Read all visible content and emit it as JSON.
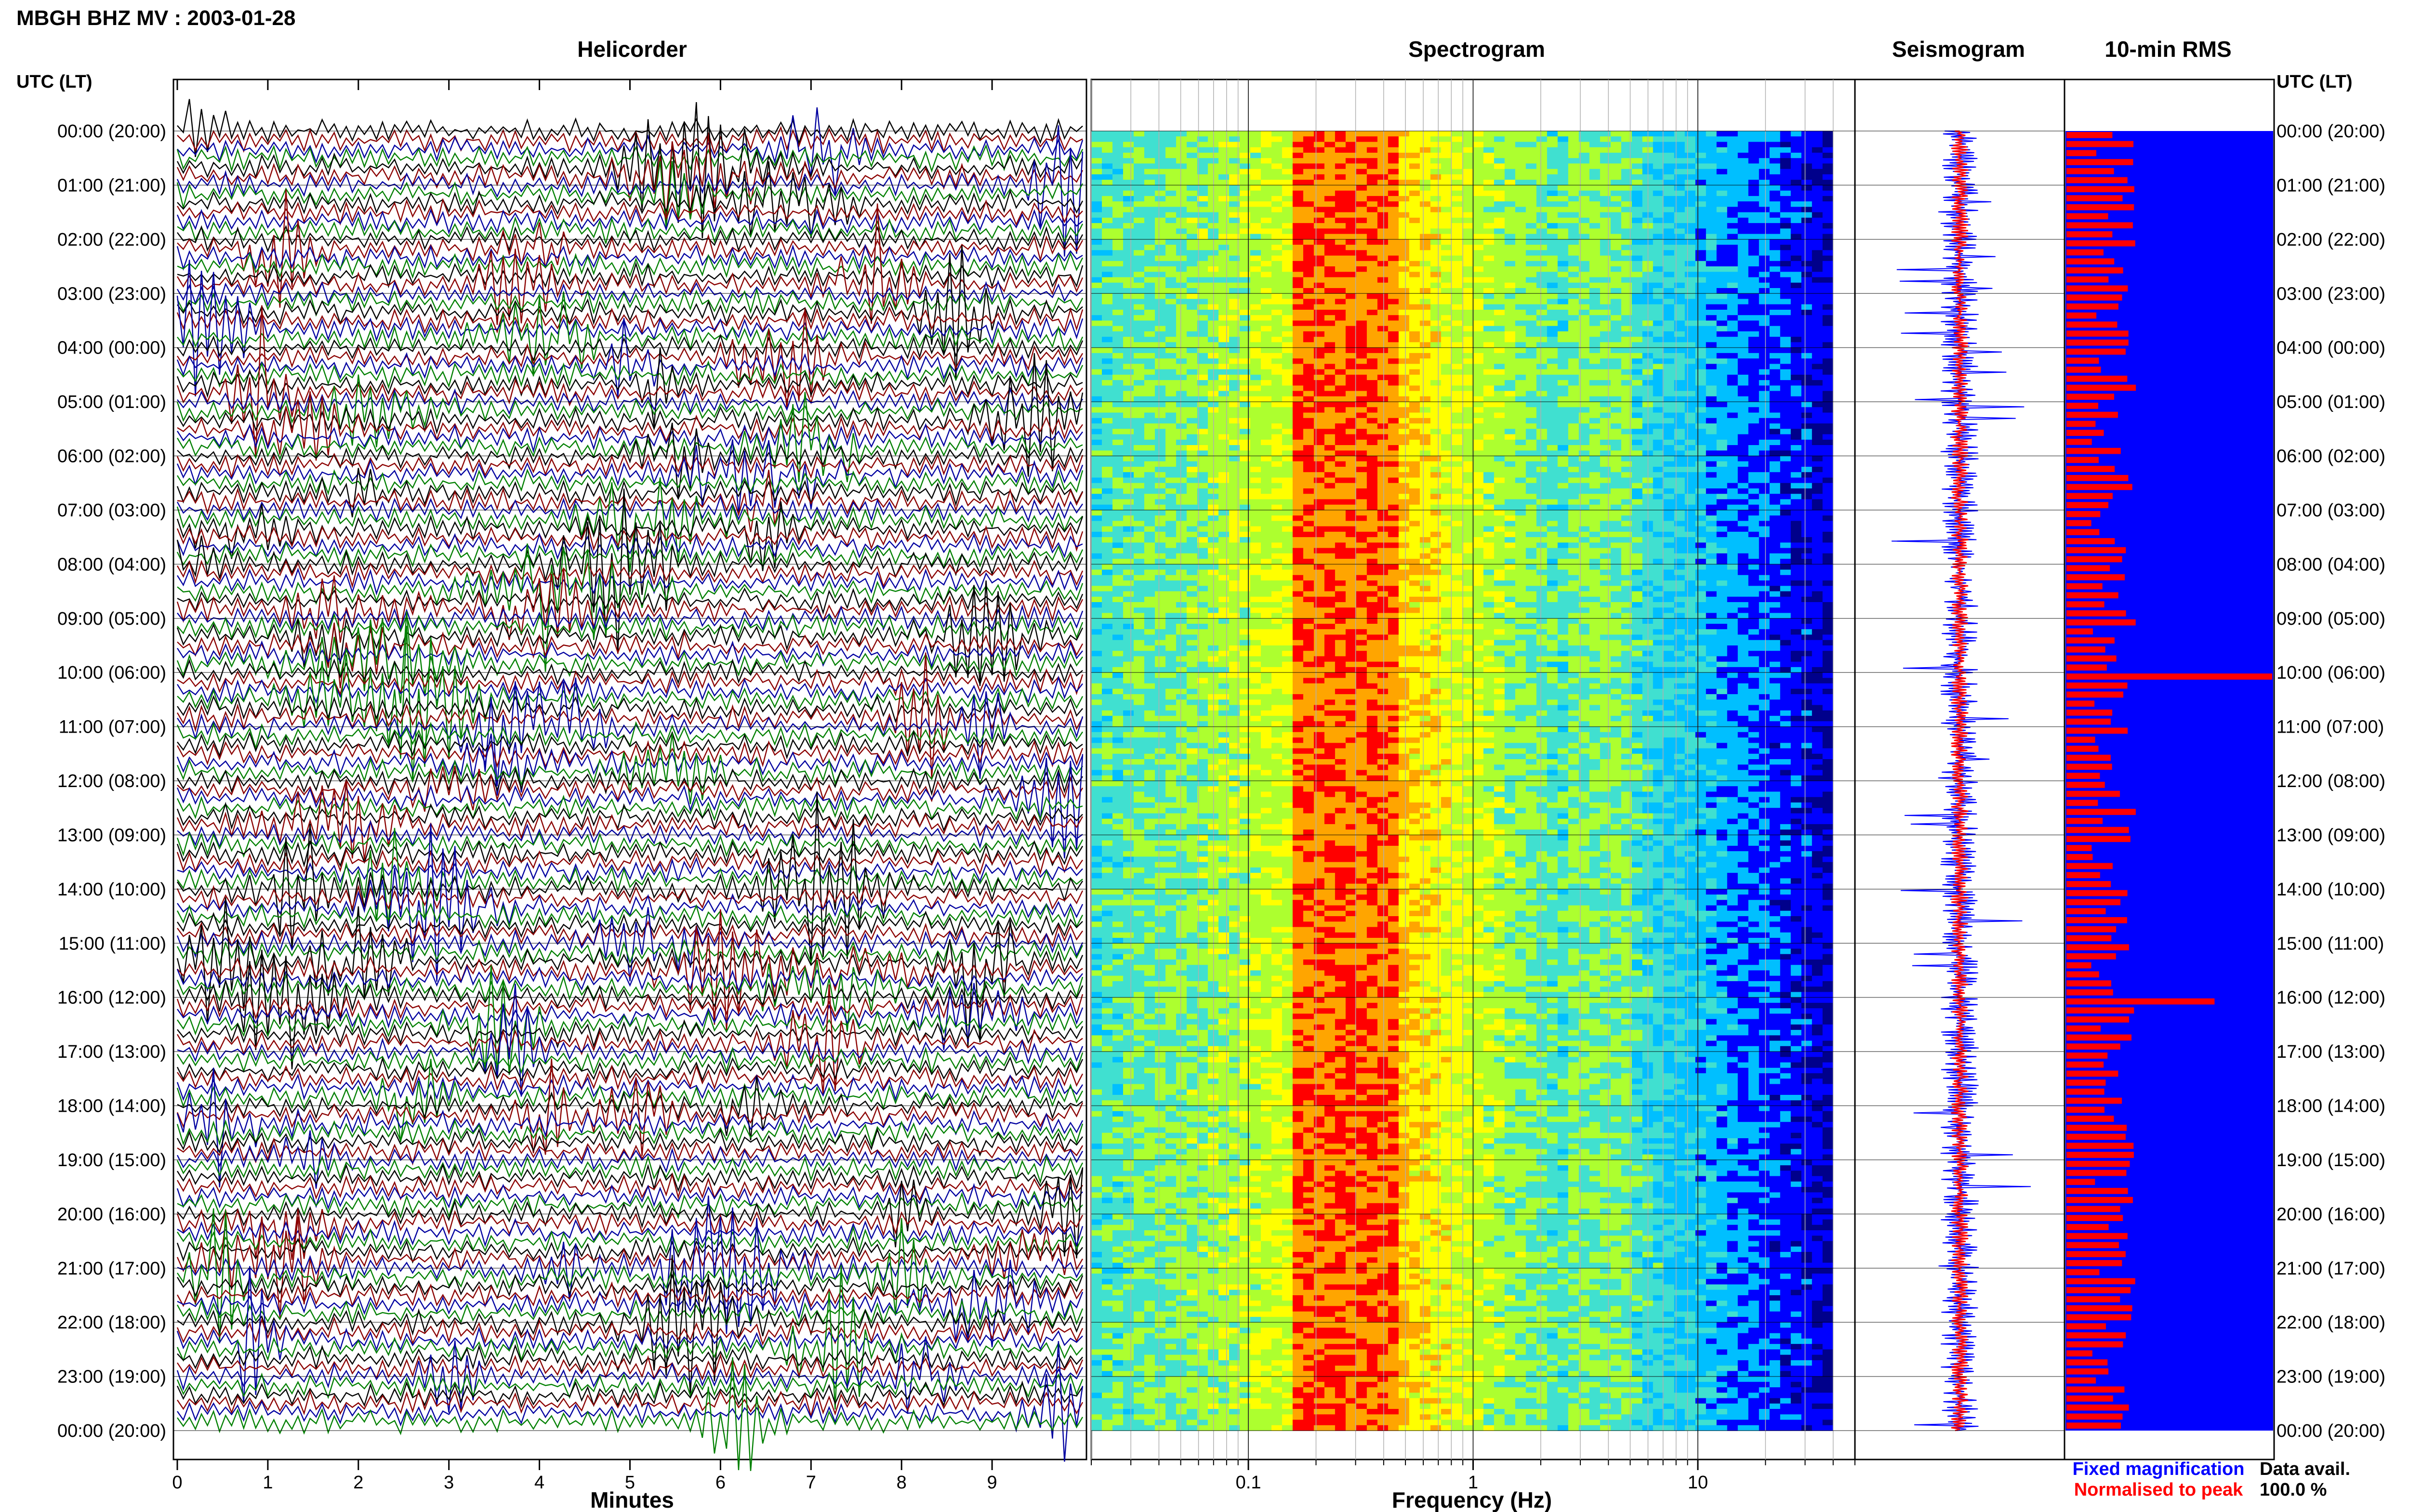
{
  "title": "MBGH BHZ MV : 2003-01-28",
  "panels": {
    "helicorder": "Helicorder",
    "spectrogram": "Spectrogram",
    "seismogram": "Seismogram",
    "rms": "10-min RMS"
  },
  "left_axis_header": "UTC (LT)",
  "right_axis_header": "UTC (LT)",
  "time_labels": [
    "00:00 (20:00)",
    "01:00 (21:00)",
    "02:00 (22:00)",
    "03:00 (23:00)",
    "04:00 (00:00)",
    "05:00 (01:00)",
    "06:00 (02:00)",
    "07:00 (03:00)",
    "08:00 (04:00)",
    "09:00 (05:00)",
    "10:00 (06:00)",
    "11:00 (07:00)",
    "12:00 (08:00)",
    "13:00 (09:00)",
    "14:00 (10:00)",
    "15:00 (11:00)",
    "16:00 (12:00)",
    "17:00 (13:00)",
    "18:00 (14:00)",
    "19:00 (15:00)",
    "20:00 (16:00)",
    "21:00 (17:00)",
    "22:00 (18:00)",
    "23:00 (19:00)",
    "00:00 (20:00)"
  ],
  "legend": {
    "fixed": "Fixed magnification",
    "normalised": "Normalised to peak",
    "fixed_color": "#0000ff",
    "normalised_color": "#ff0000"
  },
  "data_avail": {
    "label": "Data avail.",
    "value": "100.0 %"
  },
  "chart_data": [
    {
      "type": "helicorder",
      "title": "Helicorder",
      "xlabel": "Minutes",
      "x_ticks": [
        "0",
        "1",
        "2",
        "3",
        "4",
        "5",
        "6",
        "7",
        "8",
        "9"
      ],
      "xlim": [
        0,
        10
      ],
      "trace_colors": [
        "#000000",
        "#8b0000",
        "#0000a0",
        "#008000"
      ],
      "rows_per_day": 144,
      "minutes_per_row": 10
    },
    {
      "type": "heatmap",
      "title": "Spectrogram",
      "xlabel": "Frequency (Hz)",
      "x_scale": "log",
      "xlim": [
        0.02,
        50
      ],
      "x_ticks": [
        "0.1",
        "1",
        "10"
      ],
      "dominant_band_hz": [
        0.15,
        0.45
      ],
      "secondary_band_hz": [
        2.5,
        5
      ],
      "colormap": [
        "#00008b",
        "#0000ff",
        "#00bfff",
        "#40e0d0",
        "#adff2f",
        "#ffff00",
        "#ffa500",
        "#ff0000"
      ]
    },
    {
      "type": "line",
      "title": "Seismogram",
      "series": [
        {
          "name": "Fixed magnification",
          "color": "#0000ff"
        },
        {
          "name": "Normalised to peak",
          "color": "#ff0000"
        }
      ]
    },
    {
      "type": "bar",
      "title": "10-min RMS",
      "orientation": "horizontal",
      "bar_color": "#ff0000",
      "background_color": "#0000ff",
      "peak_times_utc": [
        "10:00",
        "16:00"
      ]
    }
  ]
}
